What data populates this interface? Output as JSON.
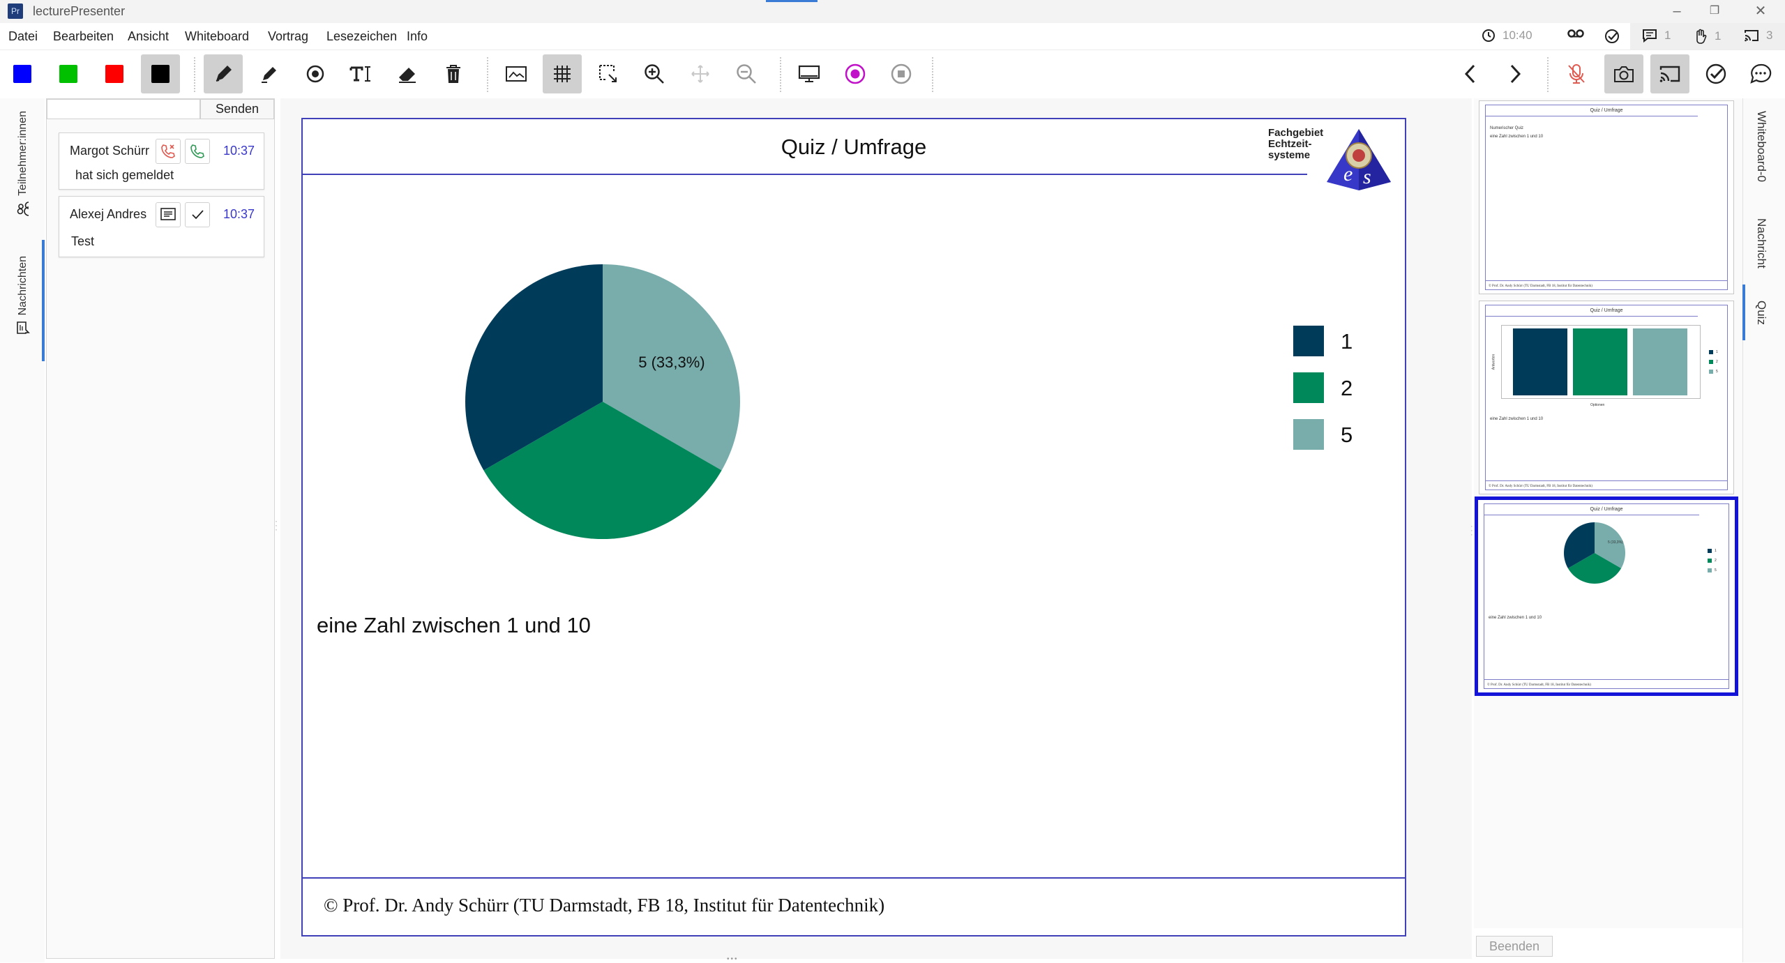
{
  "app": {
    "title": "lecturePresenter",
    "logo_text": "Pr"
  },
  "menu": [
    "Datei",
    "Bearbeiten",
    "Ansicht",
    "Whiteboard",
    "Vortrag",
    "Lesezeichen",
    "Info"
  ],
  "status": {
    "time": "10:40",
    "messages_count": "1",
    "hands_count": "1",
    "screens_count": "3"
  },
  "colors": {
    "blue": "#0000ff",
    "green": "#00c000",
    "red": "#ff0000",
    "black": "#000000",
    "accent": "#3a7bd5",
    "slide_border": "#4040b8",
    "selection": "#1414d8"
  },
  "left_tabs": {
    "participants": "Teilnehmer:innen",
    "messages": "Nachrichten"
  },
  "messages": {
    "input_value": "",
    "send_label": "Senden",
    "items": [
      {
        "name": "Margot Schürr",
        "time": "10:37",
        "text": "hat sich gemeldet"
      },
      {
        "name": "Alexej Andres",
        "time": "10:37",
        "text": "Test"
      }
    ]
  },
  "slide": {
    "title": "Quiz / Umfrage",
    "brand": [
      "Fachgebiet",
      "Echtzeit-",
      "systeme"
    ],
    "text": "eine Zahl zwischen 1 und 10",
    "footer": "© Prof. Dr. Andy Schürr (TU Darmstadt, FB 18, Institut für Datentechnik)"
  },
  "chart_data": {
    "type": "pie",
    "slices": [
      {
        "label": "1",
        "value": 5,
        "color": "#003c5a"
      },
      {
        "label": "2",
        "value": 5,
        "color": "#00875a"
      },
      {
        "label": "5",
        "value": 5,
        "color": "#78adac"
      }
    ],
    "data_labels": [
      {
        "slice": "5",
        "text": "5  (33,3%)"
      }
    ],
    "legend": {
      "placement": "right",
      "entries": [
        "1",
        "2",
        "5"
      ]
    }
  },
  "thumbnails": {
    "items": [
      {
        "title": "Quiz / Umfrage",
        "lines": [
          "Numerischer Quiz",
          "eine Zahl zwischen 1 und 10"
        ],
        "footer": "© Prof. Dr. Andy Schürr (TU Darmstadt, FB 18, Institut für Datentechnik)"
      },
      {
        "title": "Quiz / Umfrage",
        "ylabel": "Antworten",
        "xlabel": "Optionen",
        "legend": [
          "1",
          "2",
          "5"
        ],
        "text": "eine Zahl zwischen 1 und 10",
        "footer": "© Prof. Dr. Andy Schürr (TU Darmstadt, FB 18, Institut für Datentechnik)"
      },
      {
        "title": "Quiz / Umfrage",
        "pie_label": "5 (33,3%)",
        "legend": [
          "1",
          "2",
          "5"
        ],
        "text": "eine Zahl zwischen 1 und 10",
        "footer": "© Prof. Dr. Andy Schürr (TU Darmstadt, FB 18, Institut für Datentechnik)"
      }
    ],
    "finish_label": "Beenden"
  },
  "right_tabs": [
    "Whiteboard-0",
    "Nachricht",
    "Quiz"
  ]
}
